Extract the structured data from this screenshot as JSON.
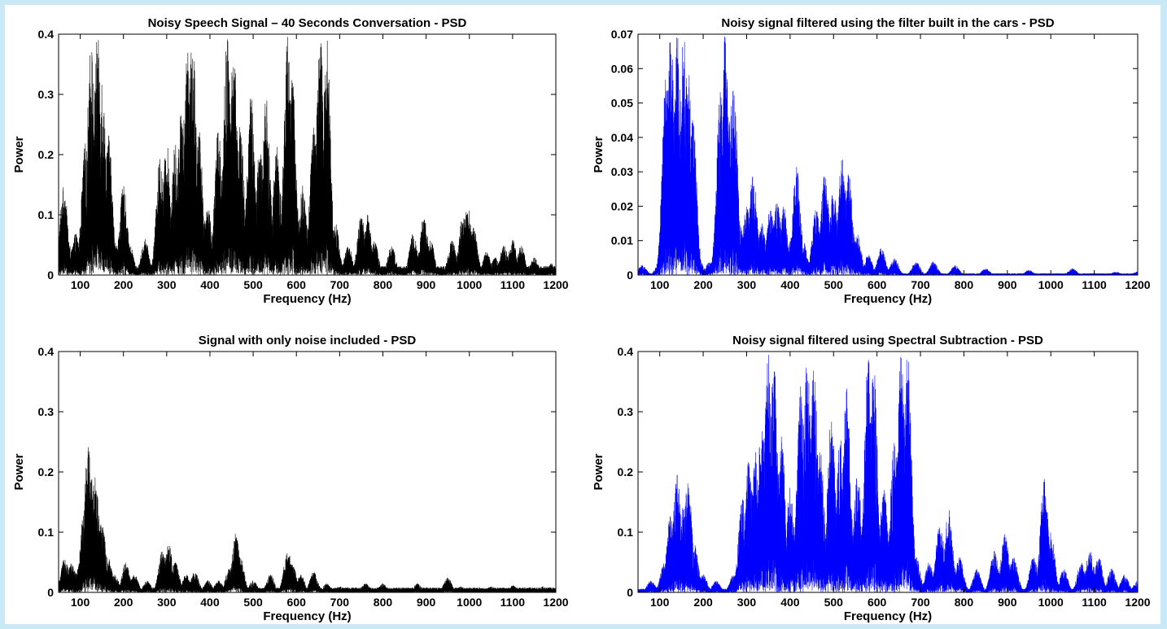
{
  "page": {
    "background": "#c9e9f7"
  },
  "chart_data": [
    {
      "type": "line",
      "title": "Noisy Speech Signal – 40 Seconds Conversation - PSD",
      "xlabel": "Frequency (Hz)",
      "ylabel": "Power",
      "xlim": [
        50,
        1200
      ],
      "ylim": [
        0,
        0.4
      ],
      "xticks": [
        100,
        200,
        300,
        400,
        500,
        600,
        700,
        800,
        900,
        1000,
        1100,
        1200
      ],
      "yticks": [
        "0",
        "0.1",
        "0.2",
        "0.3",
        "0.4"
      ],
      "color": "#000000",
      "grid": false,
      "series": [
        {
          "peaks": [
            [
              55,
              0.03
            ],
            [
              62,
              0.15
            ],
            [
              75,
              0.05
            ],
            [
              90,
              0.07
            ],
            [
              112,
              0.22
            ],
            [
              125,
              0.39
            ],
            [
              140,
              0.4
            ],
            [
              150,
              0.34
            ],
            [
              165,
              0.24
            ],
            [
              180,
              0.06
            ],
            [
              200,
              0.15
            ],
            [
              215,
              0.05
            ],
            [
              250,
              0.06
            ],
            [
              285,
              0.2
            ],
            [
              300,
              0.22
            ],
            [
              320,
              0.22
            ],
            [
              335,
              0.3
            ],
            [
              350,
              0.4
            ],
            [
              360,
              0.4
            ],
            [
              375,
              0.24
            ],
            [
              395,
              0.12
            ],
            [
              420,
              0.25
            ],
            [
              440,
              0.4
            ],
            [
              455,
              0.38
            ],
            [
              470,
              0.25
            ],
            [
              495,
              0.3
            ],
            [
              515,
              0.22
            ],
            [
              530,
              0.3
            ],
            [
              555,
              0.22
            ],
            [
              580,
              0.4
            ],
            [
              590,
              0.35
            ],
            [
              615,
              0.15
            ],
            [
              640,
              0.25
            ],
            [
              655,
              0.4
            ],
            [
              670,
              0.4
            ],
            [
              690,
              0.09
            ],
            [
              720,
              0.05
            ],
            [
              750,
              0.1
            ],
            [
              765,
              0.1
            ],
            [
              780,
              0.06
            ],
            [
              820,
              0.05
            ],
            [
              870,
              0.07
            ],
            [
              895,
              0.1
            ],
            [
              910,
              0.06
            ],
            [
              960,
              0.06
            ],
            [
              985,
              0.1
            ],
            [
              995,
              0.12
            ],
            [
              1010,
              0.08
            ],
            [
              1040,
              0.04
            ],
            [
              1060,
              0.03
            ],
            [
              1080,
              0.05
            ],
            [
              1100,
              0.06
            ],
            [
              1120,
              0.05
            ],
            [
              1150,
              0.03
            ],
            [
              1190,
              0.02
            ]
          ],
          "floor": 0.015
        }
      ]
    },
    {
      "type": "line",
      "title": "Noisy signal filtered using the filter built in the cars - PSD",
      "xlabel": "Frequency (Hz)",
      "ylabel": "Power",
      "xlim": [
        50,
        1200
      ],
      "ylim": [
        0,
        0.07
      ],
      "xticks": [
        100,
        200,
        300,
        400,
        500,
        600,
        700,
        800,
        900,
        1000,
        1100,
        1200
      ],
      "yticks": [
        "0",
        "0.01",
        "0.02",
        "0.03",
        "0.04",
        "0.05",
        "0.06",
        "0.07"
      ],
      "color": "#0000ff",
      "grid": false,
      "series": [
        {
          "peaks": [
            [
              60,
              0.003
            ],
            [
              100,
              0.004
            ],
            [
              115,
              0.06
            ],
            [
              125,
              0.07
            ],
            [
              140,
              0.07
            ],
            [
              155,
              0.07
            ],
            [
              165,
              0.062
            ],
            [
              175,
              0.05
            ],
            [
              190,
              0.005
            ],
            [
              215,
              0.004
            ],
            [
              240,
              0.055
            ],
            [
              250,
              0.07
            ],
            [
              260,
              0.045
            ],
            [
              270,
              0.058
            ],
            [
              285,
              0.015
            ],
            [
              300,
              0.02
            ],
            [
              315,
              0.03
            ],
            [
              335,
              0.015
            ],
            [
              355,
              0.02
            ],
            [
              370,
              0.022
            ],
            [
              385,
              0.02
            ],
            [
              400,
              0.01
            ],
            [
              415,
              0.032
            ],
            [
              430,
              0.01
            ],
            [
              460,
              0.02
            ],
            [
              480,
              0.03
            ],
            [
              500,
              0.025
            ],
            [
              520,
              0.035
            ],
            [
              535,
              0.03
            ],
            [
              555,
              0.012
            ],
            [
              580,
              0.006
            ],
            [
              610,
              0.008
            ],
            [
              640,
              0.005
            ],
            [
              690,
              0.004
            ],
            [
              730,
              0.004
            ],
            [
              780,
              0.003
            ],
            [
              850,
              0.002
            ],
            [
              950,
              0.0015
            ],
            [
              1050,
              0.002
            ],
            [
              1150,
              0.001
            ],
            [
              1200,
              0.001
            ]
          ],
          "floor": 0.0005
        }
      ]
    },
    {
      "type": "line",
      "title": "Signal with only noise included - PSD",
      "xlabel": "Frequency (Hz)",
      "ylabel": "Power",
      "xlim": [
        50,
        1200
      ],
      "ylim": [
        0,
        0.4
      ],
      "xticks": [
        100,
        200,
        300,
        400,
        500,
        600,
        700,
        800,
        900,
        1000,
        1100,
        1200
      ],
      "yticks": [
        "0",
        "0.1",
        "0.2",
        "0.3",
        "0.4"
      ],
      "color": "#000000",
      "grid": false,
      "series": [
        {
          "peaks": [
            [
              55,
              0.02
            ],
            [
              65,
              0.06
            ],
            [
              80,
              0.05
            ],
            [
              95,
              0.04
            ],
            [
              110,
              0.15
            ],
            [
              118,
              0.26
            ],
            [
              125,
              0.2
            ],
            [
              135,
              0.2
            ],
            [
              150,
              0.12
            ],
            [
              165,
              0.06
            ],
            [
              180,
              0.03
            ],
            [
              205,
              0.05
            ],
            [
              225,
              0.03
            ],
            [
              255,
              0.02
            ],
            [
              290,
              0.07
            ],
            [
              305,
              0.08
            ],
            [
              320,
              0.05
            ],
            [
              345,
              0.03
            ],
            [
              365,
              0.035
            ],
            [
              395,
              0.02
            ],
            [
              420,
              0.02
            ],
            [
              445,
              0.04
            ],
            [
              460,
              0.1
            ],
            [
              470,
              0.06
            ],
            [
              500,
              0.02
            ],
            [
              540,
              0.03
            ],
            [
              580,
              0.07
            ],
            [
              590,
              0.05
            ],
            [
              610,
              0.03
            ],
            [
              640,
              0.035
            ],
            [
              670,
              0.015
            ],
            [
              700,
              0.01
            ],
            [
              760,
              0.015
            ],
            [
              800,
              0.015
            ],
            [
              880,
              0.015
            ],
            [
              950,
              0.025
            ],
            [
              980,
              0.01
            ],
            [
              1050,
              0.01
            ],
            [
              1100,
              0.012
            ],
            [
              1170,
              0.01
            ],
            [
              1200,
              0.008
            ]
          ],
          "floor": 0.008
        }
      ]
    },
    {
      "type": "line",
      "title": "Noisy signal filtered using Spectral Subtraction - PSD",
      "xlabel": "Frequency (Hz)",
      "ylabel": "Power",
      "xlim": [
        50,
        1200
      ],
      "ylim": [
        0,
        0.4
      ],
      "xticks": [
        100,
        200,
        300,
        400,
        500,
        600,
        700,
        800,
        900,
        1000,
        1100,
        1200
      ],
      "yticks": [
        "0",
        "0.1",
        "0.2",
        "0.3",
        "0.4"
      ],
      "color": "#0000ff",
      "grid": false,
      "series": [
        {
          "peaks": [
            [
              55,
              0.005
            ],
            [
              80,
              0.02
            ],
            [
              110,
              0.05
            ],
            [
              125,
              0.13
            ],
            [
              140,
              0.2
            ],
            [
              155,
              0.15
            ],
            [
              165,
              0.19
            ],
            [
              180,
              0.08
            ],
            [
              200,
              0.03
            ],
            [
              230,
              0.02
            ],
            [
              270,
              0.03
            ],
            [
              290,
              0.16
            ],
            [
              305,
              0.22
            ],
            [
              320,
              0.24
            ],
            [
              335,
              0.3
            ],
            [
              350,
              0.4
            ],
            [
              362,
              0.4
            ],
            [
              380,
              0.26
            ],
            [
              400,
              0.18
            ],
            [
              425,
              0.35
            ],
            [
              440,
              0.4
            ],
            [
              455,
              0.38
            ],
            [
              470,
              0.24
            ],
            [
              495,
              0.3
            ],
            [
              515,
              0.26
            ],
            [
              530,
              0.34
            ],
            [
              555,
              0.2
            ],
            [
              580,
              0.4
            ],
            [
              592,
              0.38
            ],
            [
              615,
              0.18
            ],
            [
              640,
              0.26
            ],
            [
              655,
              0.4
            ],
            [
              670,
              0.4
            ],
            [
              690,
              0.06
            ],
            [
              720,
              0.05
            ],
            [
              745,
              0.12
            ],
            [
              765,
              0.14
            ],
            [
              790,
              0.06
            ],
            [
              830,
              0.04
            ],
            [
              870,
              0.07
            ],
            [
              895,
              0.1
            ],
            [
              915,
              0.06
            ],
            [
              960,
              0.06
            ],
            [
              985,
              0.19
            ],
            [
              1000,
              0.1
            ],
            [
              1030,
              0.04
            ],
            [
              1070,
              0.05
            ],
            [
              1090,
              0.07
            ],
            [
              1110,
              0.06
            ],
            [
              1140,
              0.04
            ],
            [
              1170,
              0.03
            ],
            [
              1200,
              0.02
            ]
          ],
          "floor": 0.006
        }
      ]
    }
  ]
}
